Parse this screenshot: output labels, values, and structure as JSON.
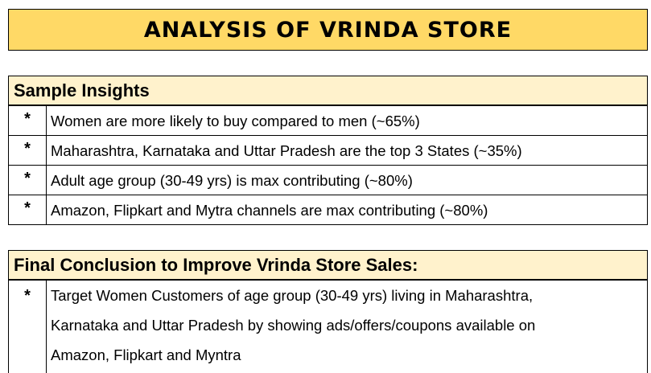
{
  "title": "ANALYSIS OF VRINDA STORE",
  "insights": {
    "heading": "Sample Insights",
    "items": [
      {
        "bullet": "*",
        "text": "Women are more likely to buy compared to men (~65%)"
      },
      {
        "bullet": "*",
        "text": "Maharashtra, Karnataka and Uttar Pradesh are the top 3 States (~35%)"
      },
      {
        "bullet": "*",
        "text": "Adult age group (30-49 yrs) is max contributing (~80%)"
      },
      {
        "bullet": "*",
        "text": "Amazon, Flipkart and Mytra channels are max contributing (~80%)"
      }
    ]
  },
  "conclusion": {
    "heading": "Final Conclusion to Improve Vrinda Store Sales:",
    "bullet": "*",
    "lines": [
      "Target Women Customers of age group (30-49 yrs) living in Maharashtra,",
      "Karnataka and Uttar Pradesh by showing ads/offers/coupons available on",
      "Amazon, Flipkart and Myntra"
    ]
  }
}
